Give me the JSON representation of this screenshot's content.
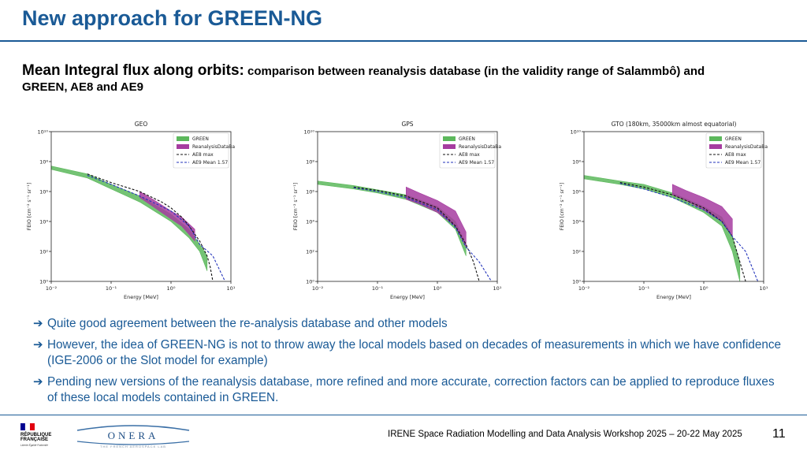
{
  "slide": {
    "title": "New approach for GREEN-NG",
    "subtitle_main": "Mean Integral flux along orbits:",
    "subtitle_rest": " comparison between reanalysis database (in the validity range of Salammbô) and GREEN, AE8 and AE9",
    "bullets": [
      "Quite good agreement between the re-analysis database and other models",
      "However, the idea of GREEN-NG is not to throw away the local models based on decades of measurements in which we have confidence (IGE-2006 or the Slot model for example)",
      "Pending new versions of the reanalysis database, more refined and more accurate, correction factors can be applied to reproduce fluxes of these local models contained in GREEN."
    ],
    "footer": "IRENE Space Radiation Modelling and Data Analysis Workshop 2025 – 20-22 May 2025",
    "page_number": "11",
    "logo_rf": {
      "line1": "RÉPUBLIQUE",
      "line2": "FRANÇAISE",
      "motto": "Liberté Égalité Fraternité"
    },
    "logo_onera": {
      "name": "ONERA",
      "tagline": "THE FRENCH AEROSPACE LAB"
    },
    "colors": {
      "title": "#1a5a96",
      "green": "#5cb85c",
      "magenta": "#a63ca0",
      "ae8": "#111111",
      "ae9": "#2233bb"
    }
  },
  "chart_data": [
    {
      "type": "line",
      "title": "GEO",
      "xlabel": "Energy [MeV]",
      "ylabel": "FEIO [cm⁻² s⁻¹ sr⁻¹]",
      "xscale": "log",
      "yscale": "log",
      "xlim": [
        0.01,
        10
      ],
      "ylim": [
        1,
        10000000000.0
      ],
      "x_ticks": [
        "10⁻²",
        "10⁻¹",
        "10⁰",
        "10¹"
      ],
      "y_ticks": [
        "10⁰",
        "10²",
        "10⁴",
        "10⁶",
        "10⁸",
        "10¹⁰"
      ],
      "legend_position": "top-right",
      "series": [
        {
          "name": "GREEN",
          "kind": "band",
          "x": [
            0.01,
            0.04,
            0.1,
            0.3,
            1.0,
            2.0,
            3.0,
            4.0
          ],
          "lower": [
            30000000.0,
            8000000.0,
            1500000.0,
            200000.0,
            10000.0,
            800,
            100,
            5
          ],
          "upper": [
            50000000.0,
            15000000.0,
            3000000.0,
            500000.0,
            30000.0,
            3000,
            300,
            50
          ]
        },
        {
          "name": "ReanalysisDataBase",
          "kind": "band",
          "x": [
            0.3,
            0.5,
            1.0,
            1.5,
            2.5
          ],
          "lower": [
            400000.0,
            100000.0,
            15000.0,
            5000,
            500
          ],
          "upper": [
            1000000.0,
            300000.0,
            50000.0,
            20000.0,
            3000
          ]
        },
        {
          "name": "AE8 max",
          "kind": "line",
          "x": [
            0.04,
            0.1,
            0.3,
            0.7,
            1.0,
            1.5,
            2.0,
            3.0,
            4.0,
            4.5,
            5.0
          ],
          "values": [
            15000000.0,
            4000000.0,
            1000000.0,
            200000.0,
            80000.0,
            20000.0,
            5000,
            500,
            50,
            10,
            1
          ]
        },
        {
          "name": "AE9 Mean 1.57",
          "kind": "line",
          "x": [
            0.04,
            0.1,
            0.3,
            1.0,
            2.0,
            3.0,
            5.0,
            8.0
          ],
          "values": [
            12000000.0,
            3000000.0,
            500000.0,
            50000.0,
            5000,
            300,
            50,
            1
          ]
        }
      ]
    },
    {
      "type": "line",
      "title": "GPS",
      "xlabel": "Energy [MeV]",
      "ylabel": "FEIO [cm⁻² s⁻¹ sr⁻¹]",
      "xscale": "log",
      "yscale": "log",
      "xlim": [
        0.01,
        10
      ],
      "ylim": [
        1,
        10000000000.0
      ],
      "x_ticks": [
        "10⁻²",
        "10⁻¹",
        "10⁰",
        "10¹"
      ],
      "y_ticks": [
        "10⁰",
        "10²",
        "10⁴",
        "10⁶",
        "10⁸",
        "10¹⁰"
      ],
      "legend_position": "top-right",
      "series": [
        {
          "name": "GREEN",
          "kind": "band",
          "x": [
            0.01,
            0.04,
            0.1,
            0.3,
            1.0,
            2.0,
            3.0
          ],
          "lower": [
            3000000.0,
            1500000.0,
            800000.0,
            300000.0,
            40000.0,
            3000,
            50
          ],
          "upper": [
            5000000.0,
            2500000.0,
            1300000.0,
            600000.0,
            100000.0,
            10000.0,
            300
          ]
        },
        {
          "name": "ReanalysisDataBase",
          "kind": "band",
          "x": [
            0.3,
            0.5,
            1.0,
            2.0,
            3.0
          ],
          "lower": [
            300000.0,
            150000.0,
            40000.0,
            5000,
            200
          ],
          "upper": [
            2000000.0,
            800000.0,
            250000.0,
            50000.0,
            2000
          ]
        },
        {
          "name": "AE8 max",
          "kind": "line",
          "x": [
            0.04,
            0.1,
            0.3,
            1.0,
            2.0,
            3.0,
            4.0,
            5.0
          ],
          "values": [
            2000000.0,
            1200000.0,
            500000.0,
            80000.0,
            5000,
            300,
            20,
            1
          ]
        },
        {
          "name": "AE9 Mean 1.57",
          "kind": "line",
          "x": [
            0.04,
            0.1,
            0.3,
            1.0,
            2.0,
            3.0,
            5.0,
            8.0
          ],
          "values": [
            1800000.0,
            1000000.0,
            400000.0,
            60000.0,
            4000,
            200,
            20,
            1
          ]
        }
      ]
    },
    {
      "type": "line",
      "title": "GTO (180km, 35000km almost equatorial)",
      "xlabel": "Energy [MeV]",
      "ylabel": "FEIO [cm⁻² s⁻¹ sr⁻¹]",
      "xscale": "log",
      "yscale": "log",
      "xlim": [
        0.01,
        10
      ],
      "ylim": [
        1,
        10000000000.0
      ],
      "x_ticks": [
        "10⁻²",
        "10⁻¹",
        "10⁰",
        "10¹"
      ],
      "y_ticks": [
        "10⁰",
        "10²",
        "10⁴",
        "10⁶",
        "10⁸",
        "10¹⁰"
      ],
      "legend_position": "top-right",
      "series": [
        {
          "name": "GREEN",
          "kind": "band",
          "x": [
            0.01,
            0.04,
            0.1,
            0.3,
            1.0,
            2.0,
            3.0,
            4.0
          ],
          "lower": [
            7000000.0,
            3000000.0,
            1500000.0,
            400000.0,
            40000.0,
            5000,
            100,
            1
          ],
          "upper": [
            12000000.0,
            5000000.0,
            3000000.0,
            800000.0,
            100000.0,
            20000.0,
            1000,
            20
          ]
        },
        {
          "name": "ReanalysisDataBase",
          "kind": "band",
          "x": [
            0.3,
            0.5,
            1.0,
            2.0,
            3.0
          ],
          "lower": [
            600000.0,
            250000.0,
            60000.0,
            10000.0,
            1000
          ],
          "upper": [
            3000000.0,
            1200000.0,
            400000.0,
            100000.0,
            15000.0
          ]
        },
        {
          "name": "AE8 max",
          "kind": "line",
          "x": [
            0.04,
            0.1,
            0.3,
            1.0,
            2.0,
            3.0,
            4.0,
            5.0
          ],
          "values": [
            4000000.0,
            2000000.0,
            600000.0,
            80000.0,
            10000.0,
            1000,
            20,
            1
          ]
        },
        {
          "name": "AE9 Mean 1.57",
          "kind": "line",
          "x": [
            0.04,
            0.1,
            0.3,
            1.0,
            2.0,
            3.0,
            5.0,
            8.0
          ],
          "values": [
            3500000.0,
            1500000.0,
            400000.0,
            60000.0,
            10000.0,
            1000,
            100,
            1
          ]
        }
      ]
    }
  ]
}
